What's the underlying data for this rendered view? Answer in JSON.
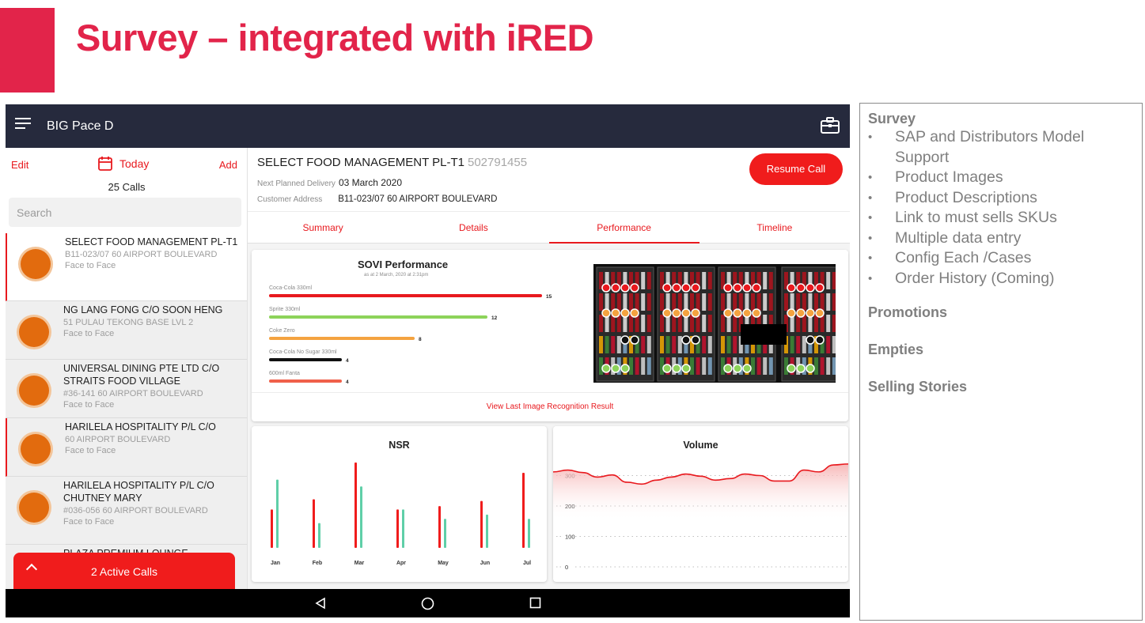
{
  "slide": {
    "title": "Survey – integrated with iRED",
    "accent": "#e2244a"
  },
  "app": {
    "title": "BIG Pace D",
    "bar_color": "#262a3d"
  },
  "left": {
    "edit": "Edit",
    "today": "Today",
    "add": "Add",
    "calls": "25 Calls",
    "search_placeholder": "Search",
    "items": [
      {
        "name": "SELECT FOOD MANAGEMENT PL-T1",
        "address": "B11-023/07 60 AIRPORT BOULEVARD",
        "type": "Face to Face"
      },
      {
        "name": "NG LANG FONG C/O SOON HENG",
        "address": "51 PULAU TEKONG BASE LVL 2",
        "type": "Face to Face"
      },
      {
        "name": "UNIVERSAL DINING PTE LTD C/O STRAITS FOOD VILLAGE",
        "address": "#36-141 60 AIRPORT BOULEVARD",
        "type": "Face to Face"
      },
      {
        "name": "HARILELA HOSPITALITY P/L C/O",
        "address": "60 AIRPORT BOULEVARD",
        "type": "Face to Face"
      },
      {
        "name": "HARILELA HOSPITALITY P/L C/O CHUTNEY MARY",
        "address": "#036-056 60 AIRPORT BOULEVARD",
        "type": "Face to Face"
      },
      {
        "name": "PLAZA PREMIUM LOUNGE",
        "address": "",
        "type": ""
      }
    ],
    "active_calls": "2 Active Calls"
  },
  "customer": {
    "name": "SELECT FOOD MANAGEMENT PL-T1",
    "number": "502791455",
    "delivery_label": "Next Planned Delivery",
    "delivery_value": "03 March 2020",
    "address_label": "Customer Address",
    "address_value": "B11-023/07 60 AIRPORT BOULEVARD",
    "resume": "Resume Call"
  },
  "tabs": [
    "Summary",
    "Details",
    "Performance",
    "Timeline"
  ],
  "sovi": {
    "title": "SOVI Performance",
    "subtitle": "as at 2 March, 2020 at 2:31pm",
    "link": "View Last Image Recognition Result"
  },
  "chart_data": [
    {
      "type": "bar",
      "title": "SOVI Performance",
      "categories": [
        "Coca-Cola 330ml",
        "Sprite 330ml",
        "Coke Zero",
        "Coca-Cola No Sugar 330ml",
        "600ml Fanta"
      ],
      "values": [
        15,
        12,
        8,
        4,
        4
      ],
      "colors": [
        "#e8191e",
        "#8dd35a",
        "#f4a340",
        "#111111",
        "#f0604a"
      ]
    },
    {
      "type": "bar",
      "title": "NSR",
      "categories": [
        "Jan",
        "Feb",
        "Mar",
        "Apr",
        "May",
        "Jun",
        "Jul"
      ],
      "series": [
        {
          "values": [
            45,
            57,
            100,
            45,
            49,
            55,
            88
          ],
          "color": "#f01c1c"
        },
        {
          "values": [
            80,
            29,
            72,
            45,
            34,
            39,
            34
          ],
          "color": "#5fcfa8"
        }
      ]
    },
    {
      "type": "area",
      "title": "Volume",
      "yticks": [
        0,
        100,
        200,
        300
      ],
      "x": [
        0,
        1,
        2,
        3,
        4,
        5,
        6,
        7,
        8,
        9,
        10,
        11,
        12,
        13,
        14,
        15,
        16,
        17,
        18,
        19,
        20
      ],
      "values": [
        312,
        318,
        310,
        295,
        302,
        278,
        272,
        285,
        295,
        305,
        298,
        285,
        290,
        305,
        300,
        282,
        282,
        318,
        312,
        335,
        338
      ],
      "color": "#e8191e"
    }
  ],
  "notes": {
    "heading": "Survey",
    "items": [
      "SAP and Distributors Model Support",
      "Product Images",
      "Product Descriptions",
      "Link to must sells SKUs",
      "Multiple data entry",
      "Config Each /Cases",
      "Order History (Coming)"
    ],
    "sections": [
      "Promotions",
      "Empties",
      "Selling Stories"
    ]
  }
}
